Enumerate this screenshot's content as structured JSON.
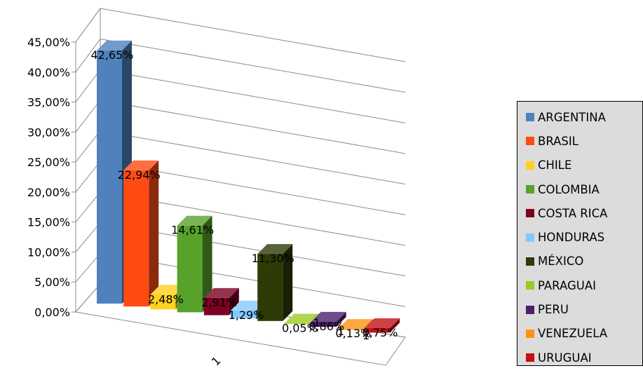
{
  "chart_data": {
    "type": "bar",
    "categories": [
      "1"
    ],
    "yticks": [
      "0,00%",
      "5,00%",
      "10,00%",
      "15,00%",
      "20,00%",
      "25,00%",
      "30,00%",
      "35,00%",
      "40,00%",
      "45,00%"
    ],
    "ylim": [
      0,
      45
    ],
    "grid": true,
    "legend_position": "right",
    "series": [
      {
        "name": "ARGENTINA",
        "value": 42.65,
        "label": "42,65%",
        "color": "#4f81bd"
      },
      {
        "name": "BRASIL",
        "value": 22.94,
        "label": "22,94%",
        "color": "#ff4b12"
      },
      {
        "name": "CHILE",
        "value": 2.48,
        "label": "2,48%",
        "color": "#ffd21f"
      },
      {
        "name": "COLOMBIA",
        "value": 14.61,
        "label": "14,61%",
        "color": "#58a12a"
      },
      {
        "name": "COSTA RICA",
        "value": 2.91,
        "label": "2,91%",
        "color": "#7b0021"
      },
      {
        "name": "HONDURAS",
        "value": 1.29,
        "label": "1,29%",
        "color": "#84c9ff"
      },
      {
        "name": "MÉXICO",
        "value": 11.3,
        "label": "11,30%",
        "color": "#2e3b06"
      },
      {
        "name": "PARAGUAI",
        "value": 0.05,
        "label": "0,05%",
        "color": "#99cc22"
      },
      {
        "name": "PERU",
        "value": 0.86,
        "label": "0,86%",
        "color": "#4b1f6f"
      },
      {
        "name": "VENEZUELA",
        "value": 0.13,
        "label": "0,13%",
        "color": "#ff9112"
      },
      {
        "name": "URUGUAI",
        "value": 0.75,
        "label": "0,75%",
        "color": "#c50f14"
      }
    ],
    "extra_labels": [
      "1",
      "1",
      "1"
    ]
  }
}
